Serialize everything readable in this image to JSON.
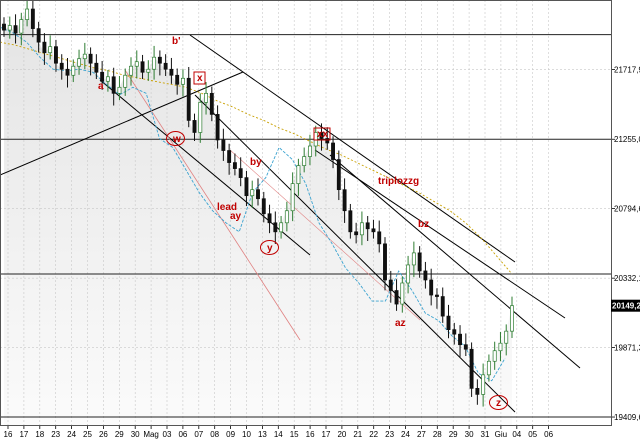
{
  "chart_data": {
    "type": "candlestick",
    "y_axis": {
      "ticks": [
        "21717,9",
        "21255,0",
        "20794,6",
        "20332,1",
        "19871,3",
        "19409,6"
      ],
      "tick_values": [
        21717.9,
        21255.0,
        20794.6,
        20332.1,
        19871.3,
        19409.6
      ],
      "range": [
        19350,
        22180
      ],
      "side": "right"
    },
    "x_axis": {
      "ticks": [
        "16",
        "17",
        "18",
        "23",
        "24",
        "25",
        "26",
        "29",
        "30",
        "Mag",
        "03",
        "06",
        "07",
        "08",
        "09",
        "10",
        "13",
        "14",
        "15",
        "16",
        "17",
        "20",
        "21",
        "22",
        "23",
        "24",
        "27",
        "28",
        "29",
        "30",
        "31",
        "Giu",
        "04",
        "05",
        "06"
      ]
    },
    "last_price": {
      "label": "20149,2",
      "value": 20149.2,
      "color": "#000000"
    },
    "horizontal_levels": [
      21950,
      21255,
      20360,
      19409.6
    ],
    "series": [
      {
        "kind": "ohlc",
        "color_up": "#2e7d32",
        "color_down": "#111111",
        "close": [
          21980,
          22010,
          21960,
          22050,
          22120,
          21990,
          21900,
          21830,
          21870,
          21760,
          21720,
          21680,
          21740,
          21790,
          21820,
          21760,
          21700,
          21640,
          21670,
          21560,
          21600,
          21680,
          21740,
          21770,
          21700,
          21720,
          21800,
          21760,
          21720,
          21680,
          21620,
          21660,
          21380,
          21300,
          21500,
          21560,
          21420,
          21250,
          21180,
          21100,
          21060,
          21000,
          20880,
          20920,
          20860,
          20760,
          20700,
          20640,
          20700,
          20780,
          20960,
          21080,
          21140,
          21210,
          21300,
          21260,
          21230,
          21120,
          20920,
          20780,
          20640,
          20620,
          20700,
          20660,
          20640,
          20560,
          20320,
          20250,
          20160,
          20300,
          20420,
          20500,
          20380,
          20320,
          20220,
          20210,
          20080,
          19990,
          19960,
          19890,
          19860,
          19600,
          19560,
          19690,
          19780,
          19850,
          19900,
          19980,
          20149.2
        ]
      },
      {
        "name": "triplozzg",
        "kind": "line",
        "color": "#c8a000",
        "values": [
          21900,
          21880,
          21850,
          21820,
          21790,
          21760,
          21730,
          21710,
          21680,
          21660,
          21640,
          21620,
          21600,
          21560,
          21510,
          21470,
          21420,
          21380,
          21330,
          21290,
          21240,
          21190,
          21150,
          21100,
          21050,
          21000,
          20950,
          20900,
          20840,
          20780,
          20700,
          20600,
          20480,
          20360
        ]
      },
      {
        "kind": "line",
        "color": "#3ba3d0",
        "values": [
          22000,
          21960,
          21900,
          21800,
          21720,
          21710,
          21720,
          21700,
          21620,
          21550,
          21600,
          21560,
          21260,
          21200,
          21050,
          20900,
          20780,
          20700,
          20640,
          20900,
          21000,
          21200,
          21120,
          20960,
          20700,
          20560,
          20400,
          20300,
          20180,
          20180,
          20380,
          20250,
          20100,
          20050,
          19950,
          19880,
          19700,
          19650,
          19800
        ]
      }
    ],
    "annotations": [
      {
        "text": "a"
      },
      {
        "text": "b'"
      },
      {
        "text": "x",
        "boxed": true
      },
      {
        "text": "w",
        "circled": true
      },
      {
        "text": "by"
      },
      {
        "text": "lead"
      },
      {
        "text": "ay"
      },
      {
        "text": "y",
        "circled": true
      },
      {
        "text": "xx",
        "boxed": true
      },
      {
        "text": "triplozzg"
      },
      {
        "text": "bz"
      },
      {
        "text": "az"
      },
      {
        "text": "z",
        "circled": true
      }
    ],
    "annotation_color": "#c00000",
    "grid": true,
    "grid_style": "dashed",
    "grid_color": "#c8c8c8"
  }
}
